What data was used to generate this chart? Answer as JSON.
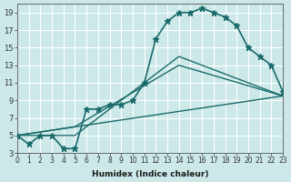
{
  "xlabel": "Humidex (Indice chaleur)",
  "ylabel": "",
  "xlim": [
    0,
    23
  ],
  "ylim": [
    3,
    19.5
  ],
  "xticks": [
    0,
    1,
    2,
    3,
    4,
    5,
    6,
    7,
    8,
    9,
    10,
    11,
    12,
    13,
    14,
    15,
    16,
    17,
    18,
    19,
    20,
    21,
    22,
    23
  ],
  "yticks": [
    3,
    5,
    7,
    9,
    11,
    13,
    15,
    17,
    19
  ],
  "background_color": "#cce8e8",
  "grid_color": "#ffffff",
  "line_color": "#1a6b6b",
  "lines": [
    {
      "x": [
        0,
        1,
        2,
        3,
        4,
        5,
        6,
        7,
        8,
        9,
        10,
        11,
        12,
        13,
        14,
        15,
        16,
        17,
        18,
        19,
        20,
        21,
        22,
        23
      ],
      "y": [
        5,
        4,
        5,
        5,
        3.5,
        3.5,
        8,
        8,
        8.5,
        8.5,
        9,
        11,
        16,
        18,
        19,
        19,
        19.5,
        19,
        18.5,
        17.5,
        15,
        14,
        13,
        10
      ],
      "marker": "*",
      "linewidth": 1.2,
      "markersize": 5
    },
    {
      "x": [
        0,
        5,
        14,
        23
      ],
      "y": [
        5,
        5,
        14,
        9.5
      ],
      "marker": null,
      "linewidth": 1.0,
      "markersize": 0
    },
    {
      "x": [
        0,
        5,
        14,
        23
      ],
      "y": [
        5,
        6,
        13,
        9.5
      ],
      "marker": null,
      "linewidth": 1.0,
      "markersize": 0
    },
    {
      "x": [
        0,
        23
      ],
      "y": [
        5,
        9.5
      ],
      "marker": null,
      "linewidth": 1.0,
      "markersize": 0
    }
  ]
}
